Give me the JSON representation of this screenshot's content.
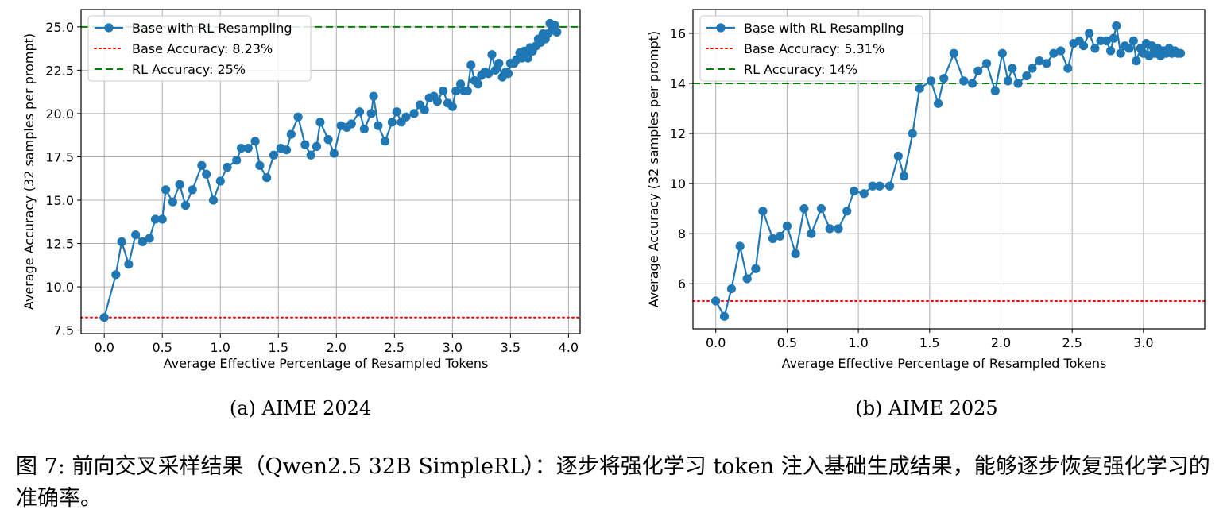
{
  "caption": "图 7: 前向交叉采样结果（Qwen2.5 32B SimpleRL）：逐步将强化学习 token 注入基础生成结果，能够逐步恢复强化学习的准确率。",
  "colors": {
    "series": "#1f77b4",
    "base_line": "#ff0000",
    "rl_line": "#008000",
    "grid": "#b0b0b0"
  },
  "chart_data": [
    {
      "type": "line",
      "subcaption": "(a) AIME 2024",
      "xlabel": "Average Effective Percentage of Resampled Tokens",
      "ylabel": "Average Accuracy (32 samples per prompt)",
      "xlim": [
        -0.2,
        4.1
      ],
      "ylim": [
        7.3,
        26.0
      ],
      "xticks": [
        0.0,
        0.5,
        1.0,
        1.5,
        2.0,
        2.5,
        3.0,
        3.5,
        4.0
      ],
      "xtick_labels": [
        "0.0",
        "0.5",
        "1.0",
        "1.5",
        "2.0",
        "2.5",
        "3.0",
        "3.5",
        "4.0"
      ],
      "yticks": [
        7.5,
        10.0,
        12.5,
        15.0,
        17.5,
        20.0,
        22.5,
        25.0
      ],
      "ytick_labels": [
        "7.5",
        "10.0",
        "12.5",
        "15.0",
        "17.5",
        "20.0",
        "22.5",
        "25.0"
      ],
      "grid": true,
      "legend_position": "top-left",
      "series": [
        {
          "name": "Base with RL Resampling",
          "style": "line-marker",
          "x": [
            0.0,
            0.1,
            0.15,
            0.21,
            0.27,
            0.33,
            0.39,
            0.44,
            0.5,
            0.53,
            0.59,
            0.65,
            0.7,
            0.76,
            0.84,
            0.88,
            0.94,
            1.0,
            1.06,
            1.14,
            1.18,
            1.24,
            1.3,
            1.34,
            1.4,
            1.46,
            1.52,
            1.57,
            1.61,
            1.67,
            1.73,
            1.78,
            1.83,
            1.86,
            1.93,
            1.98,
            2.04,
            2.09,
            2.13,
            2.2,
            2.24,
            2.3,
            2.32,
            2.36,
            2.42,
            2.48,
            2.52,
            2.56,
            2.6,
            2.67,
            2.72,
            2.76,
            2.8,
            2.84,
            2.87,
            2.92,
            2.96,
            3.0,
            3.03,
            3.07,
            3.1,
            3.13,
            3.16,
            3.19,
            3.22,
            3.25,
            3.28,
            3.31,
            3.34,
            3.37,
            3.4,
            3.43,
            3.46,
            3.48,
            3.5,
            3.53,
            3.55,
            3.58,
            3.6,
            3.62,
            3.65,
            3.67,
            3.69,
            3.72,
            3.74,
            3.76,
            3.78,
            3.8,
            3.82,
            3.84,
            3.86,
            3.88,
            3.9
          ],
          "y": [
            8.23,
            10.7,
            12.6,
            11.3,
            13.0,
            12.6,
            12.8,
            13.9,
            13.9,
            15.6,
            14.9,
            15.9,
            14.7,
            15.6,
            17.0,
            16.5,
            15.0,
            16.1,
            16.9,
            17.3,
            18.0,
            18.0,
            18.4,
            17.0,
            16.3,
            17.6,
            18.0,
            17.9,
            18.8,
            19.8,
            18.2,
            17.6,
            18.1,
            19.5,
            18.5,
            17.7,
            19.3,
            19.2,
            19.4,
            20.1,
            19.1,
            20.0,
            21.0,
            19.3,
            18.4,
            19.5,
            20.1,
            19.5,
            19.8,
            20.0,
            20.5,
            20.2,
            20.9,
            21.0,
            20.7,
            21.3,
            20.6,
            20.4,
            21.3,
            21.7,
            21.3,
            21.3,
            22.8,
            21.9,
            21.7,
            22.2,
            22.4,
            22.3,
            23.4,
            22.5,
            22.9,
            22.1,
            22.4,
            22.3,
            22.9,
            22.9,
            23.1,
            23.5,
            23.2,
            23.6,
            23.2,
            23.8,
            23.6,
            23.9,
            24.3,
            24.1,
            24.6,
            24.3,
            24.6,
            25.2,
            24.8,
            25.1,
            24.7
          ]
        },
        {
          "name": "Base Accuracy: 8.23%",
          "style": "dotted",
          "y": 8.23
        },
        {
          "name": "RL Accuracy: 25%",
          "style": "dashed",
          "y": 25.0
        }
      ]
    },
    {
      "type": "line",
      "subcaption": "(b) AIME 2025",
      "xlabel": "Average Effective Percentage of Resampled Tokens",
      "ylabel": "Average Accuracy (32 samples per prompt)",
      "xlim": [
        -0.16,
        3.43
      ],
      "ylim": [
        4.2,
        16.95
      ],
      "xticks": [
        0.0,
        0.5,
        1.0,
        1.5,
        2.0,
        2.5,
        3.0
      ],
      "xtick_labels": [
        "0.0",
        "0.5",
        "1.0",
        "1.5",
        "2.0",
        "2.5",
        "3.0"
      ],
      "yticks": [
        6,
        8,
        10,
        12,
        14,
        16
      ],
      "ytick_labels": [
        "6",
        "8",
        "10",
        "12",
        "14",
        "16"
      ],
      "grid": true,
      "legend_position": "top-left",
      "series": [
        {
          "name": "Base with RL Resampling",
          "style": "line-marker",
          "x": [
            0.0,
            0.06,
            0.11,
            0.17,
            0.22,
            0.28,
            0.33,
            0.4,
            0.45,
            0.5,
            0.56,
            0.62,
            0.67,
            0.74,
            0.8,
            0.86,
            0.92,
            0.97,
            1.04,
            1.1,
            1.15,
            1.22,
            1.28,
            1.32,
            1.38,
            1.43,
            1.51,
            1.56,
            1.6,
            1.67,
            1.74,
            1.8,
            1.84,
            1.9,
            1.96,
            2.01,
            2.05,
            2.08,
            2.12,
            2.18,
            2.22,
            2.27,
            2.32,
            2.37,
            2.42,
            2.47,
            2.51,
            2.55,
            2.58,
            2.62,
            2.66,
            2.7,
            2.74,
            2.77,
            2.79,
            2.81,
            2.84,
            2.87,
            2.9,
            2.93,
            2.95,
            2.98,
            3.0,
            3.02,
            3.04,
            3.06,
            3.08,
            3.1,
            3.12,
            3.14,
            3.16,
            3.18,
            3.2,
            3.22,
            3.24,
            3.26
          ],
          "y": [
            5.31,
            4.7,
            5.8,
            7.5,
            6.2,
            6.6,
            8.9,
            7.8,
            7.9,
            8.3,
            7.2,
            9.0,
            8.0,
            9.0,
            8.2,
            8.2,
            8.9,
            9.7,
            9.6,
            9.9,
            9.9,
            9.9,
            11.1,
            10.3,
            12.0,
            13.8,
            14.1,
            13.2,
            14.2,
            15.2,
            14.1,
            14.0,
            14.5,
            14.8,
            13.7,
            15.2,
            14.1,
            14.6,
            14.0,
            14.3,
            14.6,
            14.9,
            14.8,
            15.2,
            15.3,
            14.6,
            15.6,
            15.7,
            15.5,
            16.0,
            15.4,
            15.7,
            15.7,
            15.3,
            15.8,
            16.3,
            15.2,
            15.5,
            15.4,
            15.7,
            14.9,
            15.4,
            15.2,
            15.6,
            15.1,
            15.5,
            15.2,
            15.4,
            15.1,
            15.3,
            15.2,
            15.4,
            15.2,
            15.3,
            15.2,
            15.2
          ]
        },
        {
          "name": "Base Accuracy: 5.31%",
          "style": "dotted",
          "y": 5.31
        },
        {
          "name": "RL Accuracy: 14%",
          "style": "dashed",
          "y": 14.0
        }
      ]
    }
  ]
}
